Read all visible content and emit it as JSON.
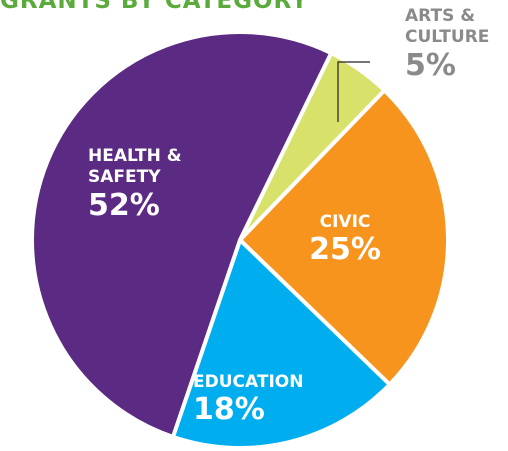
{
  "chart_data": {
    "type": "pie",
    "title": "GRANTS BY CATEGORY",
    "categories": [
      "ARTS & CULTURE",
      "CIVIC",
      "EDUCATION",
      "HEALTH & SAFETY"
    ],
    "values": [
      5,
      25,
      18,
      52
    ],
    "value_labels": [
      "5%",
      "25%",
      "18%",
      "52%"
    ],
    "colors": [
      "#d8e26a",
      "#f7941d",
      "#00aeef",
      "#5b2a82"
    ]
  }
}
